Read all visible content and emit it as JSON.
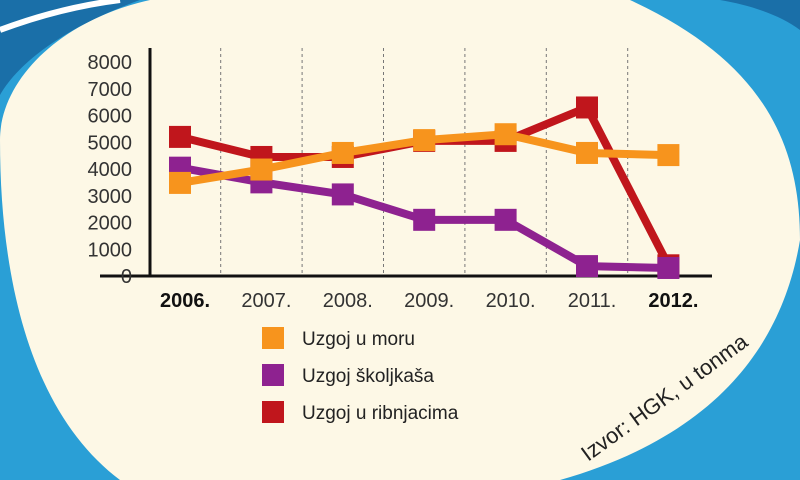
{
  "chart_data": {
    "type": "line",
    "title": "",
    "xlabel": "",
    "ylabel": "",
    "categories": [
      "2006.",
      "2007.",
      "2008.",
      "2009.",
      "2010.",
      "2011.",
      "2012."
    ],
    "bold_categories": [
      "2006.",
      "2012."
    ],
    "ylim": [
      0,
      8000
    ],
    "yticks": [
      "0",
      "1000",
      "2000",
      "3000",
      "4000",
      "5000",
      "6000",
      "7000",
      "8000"
    ],
    "grid": "vertical dashed",
    "legend_position": "bottom",
    "series": [
      {
        "name": "Uzgoj u ribnjacima",
        "color": "#c0161c",
        "values": [
          5200,
          4450,
          4450,
          5050,
          5050,
          6300,
          400
        ]
      },
      {
        "name": "Uzgoj školjkaša",
        "color": "#8e2290",
        "values": [
          4050,
          3500,
          3050,
          2100,
          2100,
          370,
          300
        ]
      },
      {
        "name": "Uzgoj u moru",
        "color": "#f7941d",
        "values": [
          3480,
          3980,
          4600,
          5080,
          5300,
          4600,
          4520
        ]
      }
    ],
    "legend": [
      "Uzgoj u moru",
      "Uzgoj školjkaša",
      "Uzgoj u ribnjacima"
    ],
    "annotation": "Izvor: HGK, u tonma"
  },
  "colors": {
    "background": "#fdf8e6",
    "frame_blue": "#2a9fd6",
    "frame_dark": "#1a6fa8"
  }
}
